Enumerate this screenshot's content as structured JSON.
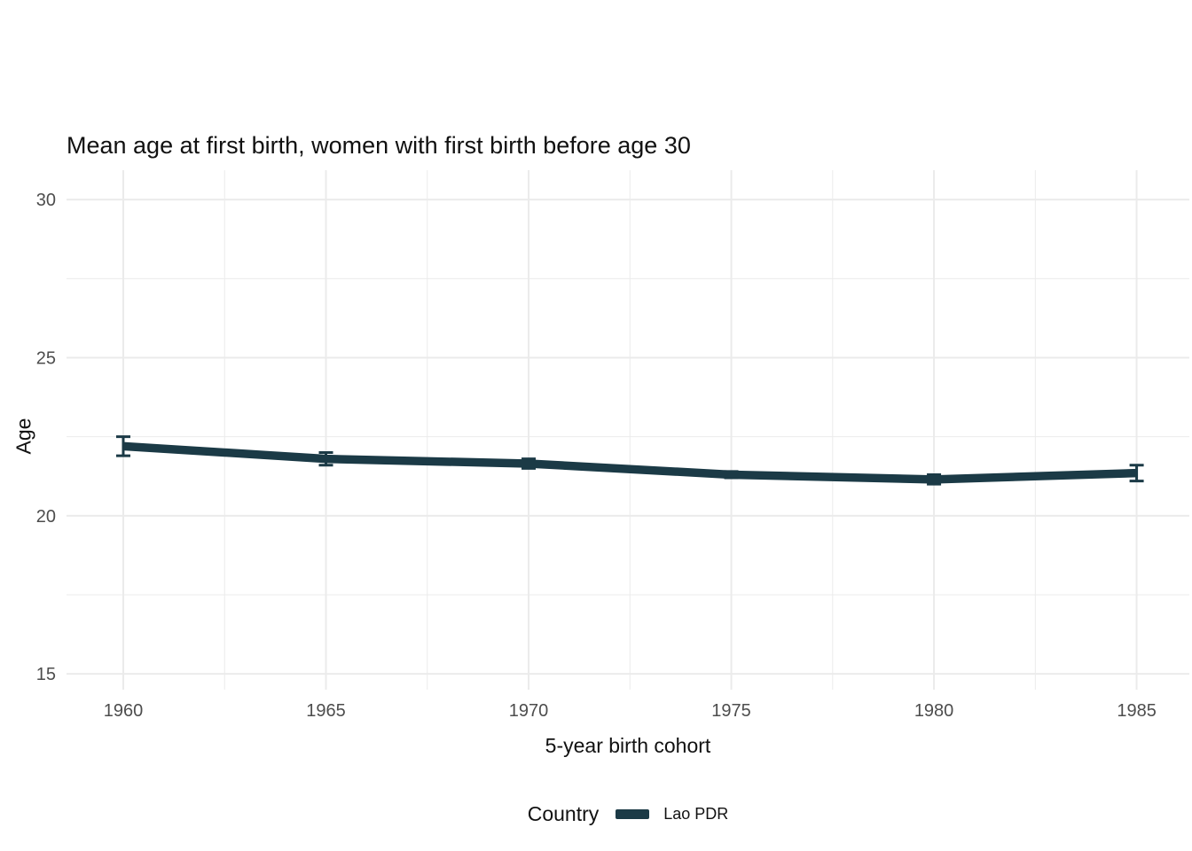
{
  "title": "Mean age at first birth, women with first birth before age 30",
  "chart_data": {
    "type": "line",
    "title": "Mean age at first birth, women with first birth before age 30",
    "xlabel": "5-year birth cohort",
    "ylabel": "Age",
    "x": [
      1960,
      1965,
      1970,
      1975,
      1980,
      1985
    ],
    "series": [
      {
        "name": "Lao PDR",
        "color": "#1b3a46",
        "values": [
          22.2,
          21.8,
          21.65,
          21.3,
          21.15,
          21.35
        ],
        "ci_low": [
          21.9,
          21.6,
          21.5,
          21.2,
          21.0,
          21.1
        ],
        "ci_high": [
          22.5,
          22.0,
          21.8,
          21.4,
          21.3,
          21.6
        ]
      }
    ],
    "x_ticks": [
      1960,
      1965,
      1970,
      1975,
      1980,
      1985
    ],
    "y_ticks": [
      15,
      20,
      25,
      30
    ],
    "x_minor": [
      1962.5,
      1967.5,
      1972.5,
      1977.5,
      1982.5
    ],
    "y_minor": [
      17.5,
      22.5,
      27.5
    ],
    "xlim": [
      1958.6,
      1986.3
    ],
    "ylim": [
      14.5,
      30.93
    ],
    "grid": true,
    "grid_color": "#ebebeb",
    "tick_label_color": "#4d4d4d",
    "background": "#ffffff",
    "legend_position": "bottom"
  },
  "legend": {
    "title": "Country",
    "entries": [
      {
        "label": "Lao PDR",
        "color": "#1b3a46"
      }
    ]
  }
}
